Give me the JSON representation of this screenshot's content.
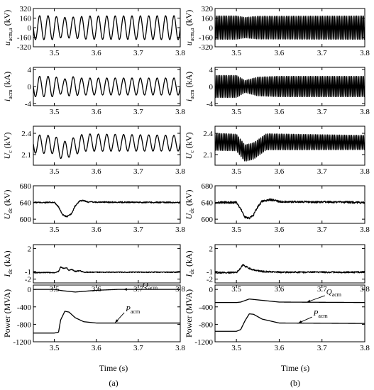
{
  "chart_data": [
    {
      "column": "a",
      "type": "line",
      "ylabel": {
        "main": "u",
        "sub": "acm,a",
        "unit": " (kV)"
      },
      "ylim": [
        -320,
        320
      ],
      "yticks": [
        -320,
        -160,
        0,
        160,
        320
      ],
      "yticklabels": [
        "-320",
        "-160",
        "0",
        "160",
        "320"
      ],
      "xlim": [
        3.45,
        3.8
      ],
      "xticks": [
        3.5,
        3.6,
        3.7,
        3.8
      ],
      "xticklabels": [
        "3.5",
        "3.6",
        "3.7",
        "3.8"
      ],
      "series": [
        {
          "kind": "sine",
          "freq_hz": 50,
          "envelope": [
            [
              3.45,
              200
            ],
            [
              3.5,
              200
            ],
            [
              3.51,
              170
            ],
            [
              3.54,
              175
            ],
            [
              3.58,
              195
            ],
            [
              3.8,
              200
            ]
          ],
          "offset": 0
        }
      ]
    },
    {
      "column": "a",
      "type": "line",
      "ylabel": {
        "main": "i",
        "sub": "acm",
        "unit": " (kA)"
      },
      "ylim": [
        -4.5,
        4.5
      ],
      "yticks": [
        -4,
        0,
        4
      ],
      "yticklabels": [
        "-4",
        "0",
        "4"
      ],
      "xlim": [
        3.45,
        3.8
      ],
      "xticks": [
        3.5,
        3.6,
        3.7,
        3.8
      ],
      "xticklabels": [
        "3.5",
        "3.6",
        "3.7",
        "3.8"
      ],
      "series": [
        {
          "kind": "sine",
          "freq_hz": 50,
          "envelope": [
            [
              3.45,
              2.4
            ],
            [
              3.5,
              2.4
            ],
            [
              3.52,
              1.6
            ],
            [
              3.54,
              2.4
            ],
            [
              3.56,
              2.0
            ],
            [
              3.6,
              2.0
            ],
            [
              3.8,
              2.0
            ]
          ],
          "offset": 0
        }
      ]
    },
    {
      "column": "a",
      "type": "line",
      "ylabel": {
        "main": "U",
        "sub": "c",
        "unit": " (kV)"
      },
      "ylim": [
        1.95,
        2.5
      ],
      "yticks": [
        2.1,
        2.4
      ],
      "yticklabels": [
        "2.1",
        "2.4"
      ],
      "xlim": [
        3.45,
        3.8
      ],
      "xticks": [
        3.5,
        3.6,
        3.7,
        3.8
      ],
      "xticklabels": [
        "3.5",
        "3.6",
        "3.7",
        "3.8"
      ],
      "series": [
        {
          "kind": "sine",
          "freq_hz": 50,
          "envelope": [
            [
              3.45,
              0.13
            ],
            [
              3.8,
              0.11
            ]
          ],
          "offset": [
            [
              3.45,
              2.25
            ],
            [
              3.5,
              2.24
            ],
            [
              3.52,
              2.15
            ],
            [
              3.54,
              2.2
            ],
            [
              3.57,
              2.27
            ],
            [
              3.8,
              2.26
            ]
          ]
        }
      ]
    },
    {
      "column": "a",
      "type": "line",
      "ylabel": {
        "main": "U",
        "sub": "dc",
        "unit": " (kV)"
      },
      "ylim": [
        590,
        680
      ],
      "yticks": [
        600,
        640,
        680
      ],
      "yticklabels": [
        "600",
        "640",
        "680"
      ],
      "xlim": [
        3.45,
        3.8
      ],
      "xticks": [
        3.5,
        3.6,
        3.7,
        3.8
      ],
      "xticklabels": [
        "3.5",
        "3.6",
        "3.7",
        "3.8"
      ],
      "series": [
        {
          "kind": "curve",
          "noise": 1.5,
          "points": [
            [
              3.45,
              640
            ],
            [
              3.5,
              640
            ],
            [
              3.51,
              630
            ],
            [
              3.52,
              610
            ],
            [
              3.53,
              606
            ],
            [
              3.54,
              612
            ],
            [
              3.55,
              632
            ],
            [
              3.56,
              643
            ],
            [
              3.57,
              645
            ],
            [
              3.58,
              641
            ],
            [
              3.8,
              640
            ]
          ]
        }
      ]
    },
    {
      "column": "a",
      "type": "line",
      "ylabel": {
        "main": "I",
        "sub": "dc",
        "unit": " (kA)"
      },
      "ylim": [
        -2.5,
        2.5
      ],
      "yticks": [
        -2,
        -1,
        2
      ],
      "yticklabels": [
        "-2",
        "-1",
        "2"
      ],
      "xlim": [
        3.45,
        3.8
      ],
      "xticks": [
        3.5,
        3.6,
        3.7,
        3.8
      ],
      "xticklabels": [
        "3.5",
        "3.6",
        "3.7",
        "3.8"
      ],
      "series": [
        {
          "kind": "curve",
          "noise": 0.06,
          "points": [
            [
              3.45,
              -1.15
            ],
            [
              3.5,
              -1.15
            ],
            [
              3.51,
              -1.0
            ],
            [
              3.515,
              -0.4
            ],
            [
              3.52,
              -0.6
            ],
            [
              3.53,
              -0.55
            ],
            [
              3.535,
              -0.9
            ],
            [
              3.54,
              -0.7
            ],
            [
              3.55,
              -1.0
            ],
            [
              3.56,
              -0.9
            ],
            [
              3.57,
              -1.1
            ],
            [
              3.8,
              -1.1
            ]
          ]
        }
      ]
    },
    {
      "column": "a",
      "type": "line",
      "ylabel": {
        "main": "Power (MVA)",
        "sub": "",
        "unit": ""
      },
      "ylim": [
        -1200,
        100
      ],
      "yticks": [
        -1200,
        -800,
        -400,
        0
      ],
      "yticklabels": [
        "-1200",
        "-800",
        "-400",
        "0"
      ],
      "xlim": [
        3.45,
        3.8
      ],
      "xticks": [
        3.5,
        3.6,
        3.7,
        3.8
      ],
      "xticklabels": [
        "3.5",
        "3.6",
        "3.7",
        "3.8"
      ],
      "annotations": [
        {
          "text": "Q",
          "sub": "acm",
          "x": 3.71,
          "y": 40,
          "target": [
            3.665,
            0
          ]
        },
        {
          "text": "P",
          "sub": "acm",
          "x": 3.67,
          "y": -500,
          "target": [
            3.645,
            -760
          ]
        }
      ],
      "series": [
        {
          "name": "Q",
          "kind": "curve",
          "noise": 0,
          "points": [
            [
              3.45,
              0
            ],
            [
              3.5,
              0
            ],
            [
              3.52,
              -30
            ],
            [
              3.55,
              -60
            ],
            [
              3.6,
              -20
            ],
            [
              3.65,
              0
            ],
            [
              3.8,
              0
            ]
          ]
        },
        {
          "name": "P",
          "kind": "curve",
          "noise": 0,
          "points": [
            [
              3.45,
              -1000
            ],
            [
              3.5,
              -1000
            ],
            [
              3.51,
              -980
            ],
            [
              3.515,
              -700
            ],
            [
              3.525,
              -500
            ],
            [
              3.535,
              -520
            ],
            [
              3.55,
              -650
            ],
            [
              3.57,
              -740
            ],
            [
              3.6,
              -770
            ],
            [
              3.8,
              -770
            ]
          ]
        }
      ]
    },
    {
      "column": "b",
      "type": "line",
      "ylabel": {
        "main": "u",
        "sub": "acm,a",
        "unit": " (kV)"
      },
      "ylim": [
        -320,
        320
      ],
      "yticks": [
        -320,
        -160,
        0,
        160,
        320
      ],
      "yticklabels": [
        "-320",
        "-160",
        "0",
        "160",
        "320"
      ],
      "xlim": [
        3.45,
        3.8
      ],
      "xticks": [
        3.5,
        3.6,
        3.7,
        3.8
      ],
      "xticklabels": [
        "3.5",
        "3.6",
        "3.7",
        "3.8"
      ],
      "series": [
        {
          "kind": "sine",
          "freq_hz": 250,
          "envelope": [
            [
              3.45,
              195
            ],
            [
              3.5,
              195
            ],
            [
              3.52,
              170
            ],
            [
              3.55,
              190
            ],
            [
              3.8,
              195
            ]
          ],
          "offset": 0
        }
      ]
    },
    {
      "column": "b",
      "type": "line",
      "ylabel": {
        "main": "i",
        "sub": "acm",
        "unit": " (kA)"
      },
      "ylim": [
        -4.5,
        4.5
      ],
      "yticks": [
        -4,
        0,
        4
      ],
      "yticklabels": [
        "-4",
        "0",
        "4"
      ],
      "xlim": [
        3.45,
        3.8
      ],
      "xticks": [
        3.5,
        3.6,
        3.7,
        3.8
      ],
      "xticklabels": [
        "3.5",
        "3.6",
        "3.7",
        "3.8"
      ],
      "series": [
        {
          "kind": "sine",
          "freq_hz": 250,
          "envelope": [
            [
              3.45,
              2.6
            ],
            [
              3.5,
              2.6
            ],
            [
              3.52,
              1.4
            ],
            [
              3.55,
              2.2
            ],
            [
              3.6,
              2.4
            ],
            [
              3.8,
              2.4
            ]
          ],
          "offset": 0
        }
      ]
    },
    {
      "column": "b",
      "type": "line",
      "ylabel": {
        "main": "U",
        "sub": "c",
        "unit": " (kV)"
      },
      "ylim": [
        1.95,
        2.5
      ],
      "yticks": [
        2.1,
        2.4
      ],
      "yticklabels": [
        "2.1",
        "2.4"
      ],
      "xlim": [
        3.45,
        3.8
      ],
      "xticks": [
        3.5,
        3.6,
        3.7,
        3.8
      ],
      "xticklabels": [
        "3.5",
        "3.6",
        "3.7",
        "3.8"
      ],
      "series": [
        {
          "kind": "sine",
          "freq_hz": 250,
          "envelope": [
            [
              3.45,
              0.12
            ],
            [
              3.8,
              0.1
            ]
          ],
          "offset": [
            [
              3.45,
              2.28
            ],
            [
              3.5,
              2.27
            ],
            [
              3.52,
              2.12
            ],
            [
              3.54,
              2.15
            ],
            [
              3.57,
              2.28
            ],
            [
              3.8,
              2.27
            ]
          ]
        }
      ]
    },
    {
      "column": "b",
      "type": "line",
      "ylabel": {
        "main": "U",
        "sub": "dc",
        "unit": " (kV)"
      },
      "ylim": [
        590,
        680
      ],
      "yticks": [
        600,
        640,
        680
      ],
      "yticklabels": [
        "600",
        "640",
        "680"
      ],
      "xlim": [
        3.45,
        3.8
      ],
      "xticks": [
        3.5,
        3.6,
        3.7,
        3.8
      ],
      "xticklabels": [
        "3.5",
        "3.6",
        "3.7",
        "3.8"
      ],
      "series": [
        {
          "kind": "curve",
          "noise": 2.5,
          "points": [
            [
              3.45,
              640
            ],
            [
              3.5,
              640
            ],
            [
              3.51,
              625
            ],
            [
              3.52,
              605
            ],
            [
              3.53,
              602
            ],
            [
              3.54,
              610
            ],
            [
              3.55,
              630
            ],
            [
              3.56,
              643
            ],
            [
              3.58,
              647
            ],
            [
              3.6,
              642
            ],
            [
              3.8,
              640
            ]
          ]
        }
      ]
    },
    {
      "column": "b",
      "type": "line",
      "ylabel": {
        "main": "I",
        "sub": "dc",
        "unit": " (kA)"
      },
      "ylim": [
        -2.5,
        2.5
      ],
      "yticks": [
        -2,
        -1,
        2
      ],
      "yticklabels": [
        "-2",
        "-1",
        "2"
      ],
      "xlim": [
        3.45,
        3.8
      ],
      "xticks": [
        3.5,
        3.6,
        3.7,
        3.8
      ],
      "xticklabels": [
        "3.5",
        "3.6",
        "3.7",
        "3.8"
      ],
      "series": [
        {
          "kind": "curve",
          "noise": 0.1,
          "points": [
            [
              3.45,
              -1.15
            ],
            [
              3.5,
              -1.15
            ],
            [
              3.51,
              -0.6
            ],
            [
              3.515,
              -0.1
            ],
            [
              3.52,
              -0.3
            ],
            [
              3.53,
              -0.6
            ],
            [
              3.54,
              -0.8
            ],
            [
              3.56,
              -1.0
            ],
            [
              3.6,
              -1.1
            ],
            [
              3.8,
              -1.1
            ]
          ]
        }
      ]
    },
    {
      "column": "b",
      "type": "line",
      "ylabel": {
        "main": "Power (MVA)",
        "sub": "",
        "unit": ""
      },
      "ylim": [
        -1200,
        100
      ],
      "yticks": [
        -1200,
        -800,
        -400,
        0
      ],
      "yticklabels": [
        "-1200",
        "-800",
        "-400",
        "0"
      ],
      "xlim": [
        3.45,
        3.8
      ],
      "xticks": [
        3.5,
        3.6,
        3.7,
        3.8
      ],
      "xticklabels": [
        "3.5",
        "3.6",
        "3.7",
        "3.8"
      ],
      "annotations": [
        {
          "text": "Q",
          "sub": "acm",
          "x": 3.71,
          "y": -110,
          "target": [
            3.665,
            -290
          ]
        },
        {
          "text": "P",
          "sub": "acm",
          "x": 3.68,
          "y": -600,
          "target": [
            3.645,
            -770
          ]
        }
      ],
      "series": [
        {
          "name": "Q",
          "kind": "curve",
          "noise": 0,
          "points": [
            [
              3.45,
              -300
            ],
            [
              3.5,
              -300
            ],
            [
              3.51,
              -290
            ],
            [
              3.53,
              -220
            ],
            [
              3.56,
              -250
            ],
            [
              3.6,
              -290
            ],
            [
              3.8,
              -300
            ]
          ]
        },
        {
          "name": "P",
          "kind": "curve",
          "noise": 0,
          "points": [
            [
              3.45,
              -960
            ],
            [
              3.5,
              -960
            ],
            [
              3.51,
              -920
            ],
            [
              3.52,
              -720
            ],
            [
              3.53,
              -560
            ],
            [
              3.54,
              -570
            ],
            [
              3.56,
              -680
            ],
            [
              3.6,
              -770
            ],
            [
              3.8,
              -780
            ]
          ]
        }
      ]
    }
  ],
  "xlabel_text": "Time (s)",
  "panel_tags": [
    "(a)",
    "(b)"
  ]
}
